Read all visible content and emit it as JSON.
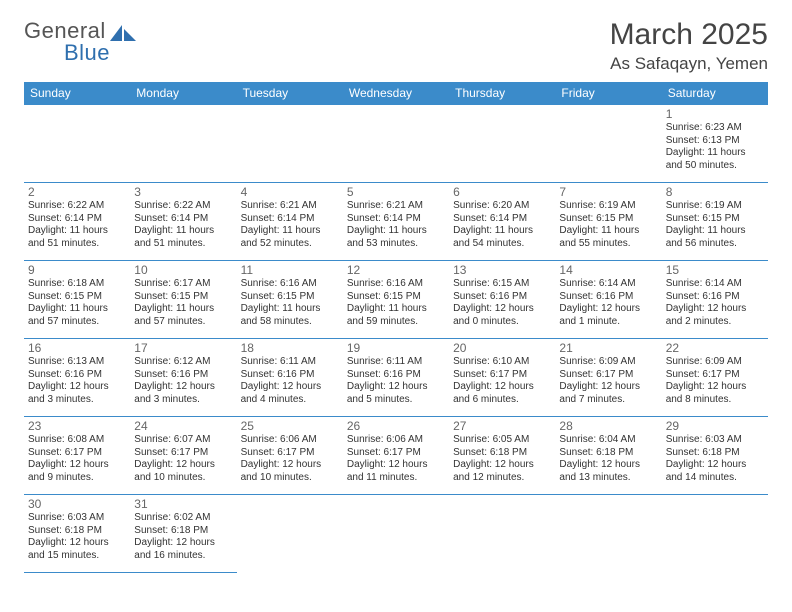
{
  "logo": {
    "general": "General",
    "blue": "Blue"
  },
  "title": "March 2025",
  "subtitle": "As Safaqayn, Yemen",
  "colors": {
    "header_bg": "#3b8bca",
    "header_text": "#ffffff",
    "cell_border": "#3b8bca",
    "daynum_color": "#666666",
    "text_color": "#333333",
    "logo_general": "#555555",
    "logo_blue": "#2f6fae",
    "background": "#ffffff"
  },
  "typography": {
    "title_fontsize": 30,
    "subtitle_fontsize": 17,
    "dayheader_fontsize": 12,
    "daynum_fontsize": 12,
    "cell_fontsize": 10,
    "logo_fontsize": 22
  },
  "day_headers": [
    "Sunday",
    "Monday",
    "Tuesday",
    "Wednesday",
    "Thursday",
    "Friday",
    "Saturday"
  ],
  "weeks": [
    [
      null,
      null,
      null,
      null,
      null,
      null,
      {
        "n": "1",
        "sr": "Sunrise: 6:23 AM",
        "ss": "Sunset: 6:13 PM",
        "dl": "Daylight: 11 hours and 50 minutes."
      }
    ],
    [
      {
        "n": "2",
        "sr": "Sunrise: 6:22 AM",
        "ss": "Sunset: 6:14 PM",
        "dl": "Daylight: 11 hours and 51 minutes."
      },
      {
        "n": "3",
        "sr": "Sunrise: 6:22 AM",
        "ss": "Sunset: 6:14 PM",
        "dl": "Daylight: 11 hours and 51 minutes."
      },
      {
        "n": "4",
        "sr": "Sunrise: 6:21 AM",
        "ss": "Sunset: 6:14 PM",
        "dl": "Daylight: 11 hours and 52 minutes."
      },
      {
        "n": "5",
        "sr": "Sunrise: 6:21 AM",
        "ss": "Sunset: 6:14 PM",
        "dl": "Daylight: 11 hours and 53 minutes."
      },
      {
        "n": "6",
        "sr": "Sunrise: 6:20 AM",
        "ss": "Sunset: 6:14 PM",
        "dl": "Daylight: 11 hours and 54 minutes."
      },
      {
        "n": "7",
        "sr": "Sunrise: 6:19 AM",
        "ss": "Sunset: 6:15 PM",
        "dl": "Daylight: 11 hours and 55 minutes."
      },
      {
        "n": "8",
        "sr": "Sunrise: 6:19 AM",
        "ss": "Sunset: 6:15 PM",
        "dl": "Daylight: 11 hours and 56 minutes."
      }
    ],
    [
      {
        "n": "9",
        "sr": "Sunrise: 6:18 AM",
        "ss": "Sunset: 6:15 PM",
        "dl": "Daylight: 11 hours and 57 minutes."
      },
      {
        "n": "10",
        "sr": "Sunrise: 6:17 AM",
        "ss": "Sunset: 6:15 PM",
        "dl": "Daylight: 11 hours and 57 minutes."
      },
      {
        "n": "11",
        "sr": "Sunrise: 6:16 AM",
        "ss": "Sunset: 6:15 PM",
        "dl": "Daylight: 11 hours and 58 minutes."
      },
      {
        "n": "12",
        "sr": "Sunrise: 6:16 AM",
        "ss": "Sunset: 6:15 PM",
        "dl": "Daylight: 11 hours and 59 minutes."
      },
      {
        "n": "13",
        "sr": "Sunrise: 6:15 AM",
        "ss": "Sunset: 6:16 PM",
        "dl": "Daylight: 12 hours and 0 minutes."
      },
      {
        "n": "14",
        "sr": "Sunrise: 6:14 AM",
        "ss": "Sunset: 6:16 PM",
        "dl": "Daylight: 12 hours and 1 minute."
      },
      {
        "n": "15",
        "sr": "Sunrise: 6:14 AM",
        "ss": "Sunset: 6:16 PM",
        "dl": "Daylight: 12 hours and 2 minutes."
      }
    ],
    [
      {
        "n": "16",
        "sr": "Sunrise: 6:13 AM",
        "ss": "Sunset: 6:16 PM",
        "dl": "Daylight: 12 hours and 3 minutes."
      },
      {
        "n": "17",
        "sr": "Sunrise: 6:12 AM",
        "ss": "Sunset: 6:16 PM",
        "dl": "Daylight: 12 hours and 3 minutes."
      },
      {
        "n": "18",
        "sr": "Sunrise: 6:11 AM",
        "ss": "Sunset: 6:16 PM",
        "dl": "Daylight: 12 hours and 4 minutes."
      },
      {
        "n": "19",
        "sr": "Sunrise: 6:11 AM",
        "ss": "Sunset: 6:16 PM",
        "dl": "Daylight: 12 hours and 5 minutes."
      },
      {
        "n": "20",
        "sr": "Sunrise: 6:10 AM",
        "ss": "Sunset: 6:17 PM",
        "dl": "Daylight: 12 hours and 6 minutes."
      },
      {
        "n": "21",
        "sr": "Sunrise: 6:09 AM",
        "ss": "Sunset: 6:17 PM",
        "dl": "Daylight: 12 hours and 7 minutes."
      },
      {
        "n": "22",
        "sr": "Sunrise: 6:09 AM",
        "ss": "Sunset: 6:17 PM",
        "dl": "Daylight: 12 hours and 8 minutes."
      }
    ],
    [
      {
        "n": "23",
        "sr": "Sunrise: 6:08 AM",
        "ss": "Sunset: 6:17 PM",
        "dl": "Daylight: 12 hours and 9 minutes."
      },
      {
        "n": "24",
        "sr": "Sunrise: 6:07 AM",
        "ss": "Sunset: 6:17 PM",
        "dl": "Daylight: 12 hours and 10 minutes."
      },
      {
        "n": "25",
        "sr": "Sunrise: 6:06 AM",
        "ss": "Sunset: 6:17 PM",
        "dl": "Daylight: 12 hours and 10 minutes."
      },
      {
        "n": "26",
        "sr": "Sunrise: 6:06 AM",
        "ss": "Sunset: 6:17 PM",
        "dl": "Daylight: 12 hours and 11 minutes."
      },
      {
        "n": "27",
        "sr": "Sunrise: 6:05 AM",
        "ss": "Sunset: 6:18 PM",
        "dl": "Daylight: 12 hours and 12 minutes."
      },
      {
        "n": "28",
        "sr": "Sunrise: 6:04 AM",
        "ss": "Sunset: 6:18 PM",
        "dl": "Daylight: 12 hours and 13 minutes."
      },
      {
        "n": "29",
        "sr": "Sunrise: 6:03 AM",
        "ss": "Sunset: 6:18 PM",
        "dl": "Daylight: 12 hours and 14 minutes."
      }
    ],
    [
      {
        "n": "30",
        "sr": "Sunrise: 6:03 AM",
        "ss": "Sunset: 6:18 PM",
        "dl": "Daylight: 12 hours and 15 minutes."
      },
      {
        "n": "31",
        "sr": "Sunrise: 6:02 AM",
        "ss": "Sunset: 6:18 PM",
        "dl": "Daylight: 12 hours and 16 minutes."
      },
      null,
      null,
      null,
      null,
      null
    ]
  ]
}
